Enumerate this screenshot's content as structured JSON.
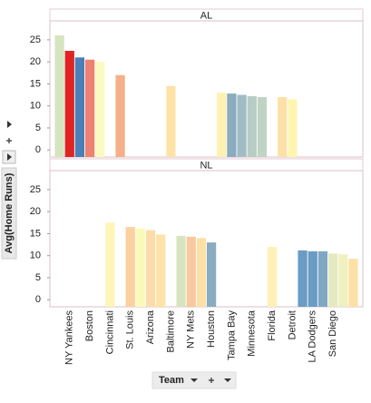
{
  "chart_data": {
    "type": "bar",
    "y_label": "Avg(Home Runs)",
    "x_label": "Team",
    "categories": [
      null,
      "NY Yankees",
      null,
      "Boston",
      null,
      "Cincinnati",
      null,
      "St. Louis",
      null,
      "Arizona",
      null,
      "Baltimore",
      null,
      "NY Mets",
      null,
      "Houston",
      null,
      "Tampa Bay",
      null,
      "Minnesota",
      null,
      "Florida",
      null,
      "Detroit",
      null,
      "LA Dodgers",
      null,
      "San Diego",
      null,
      null
    ],
    "colors": [
      "#d6e4c0",
      "#e02424",
      "#4a7fb8",
      "#f08070",
      "#fafac0",
      "#fef5b8",
      "#f5b08a",
      "#fdd0a0",
      "#fafab8",
      "#fcdcaa",
      "#fde3a8",
      "#fde3a8",
      "#d8e4c0",
      "#f8c8a0",
      "#fde0a8",
      "#8aacbe",
      "#fef0b0",
      "#8aacbe",
      "#a0bcc4",
      "#b8ccc4",
      "#c0d4c4",
      "#fef0b8",
      "#fde0a8",
      "#fef5b0",
      "#6a9cc4",
      "#6a9cc4",
      "#80a8c4",
      "#e4eac0",
      "#f0f0c0",
      "#fde0a8"
    ],
    "panels": [
      {
        "name": "AL",
        "values": [
          26,
          22.5,
          21,
          20.5,
          20,
          null,
          17,
          null,
          null,
          null,
          null,
          14.5,
          null,
          null,
          null,
          null,
          13,
          12.8,
          12.5,
          12.2,
          12,
          null,
          12,
          11.5,
          null,
          null,
          null,
          null,
          null,
          null
        ]
      },
      {
        "name": "NL",
        "values": [
          null,
          null,
          null,
          null,
          null,
          17.5,
          null,
          16.5,
          16.2,
          15.8,
          14.8,
          null,
          14.5,
          14.3,
          14,
          13,
          null,
          null,
          null,
          null,
          null,
          12,
          null,
          null,
          11.2,
          11,
          11,
          10.5,
          10.3,
          9.3
        ]
      }
    ],
    "ylim": [
      -1.6,
      29.3
    ],
    "yticks": [
      0,
      5,
      10,
      15,
      20,
      25
    ],
    "grid": false
  }
}
